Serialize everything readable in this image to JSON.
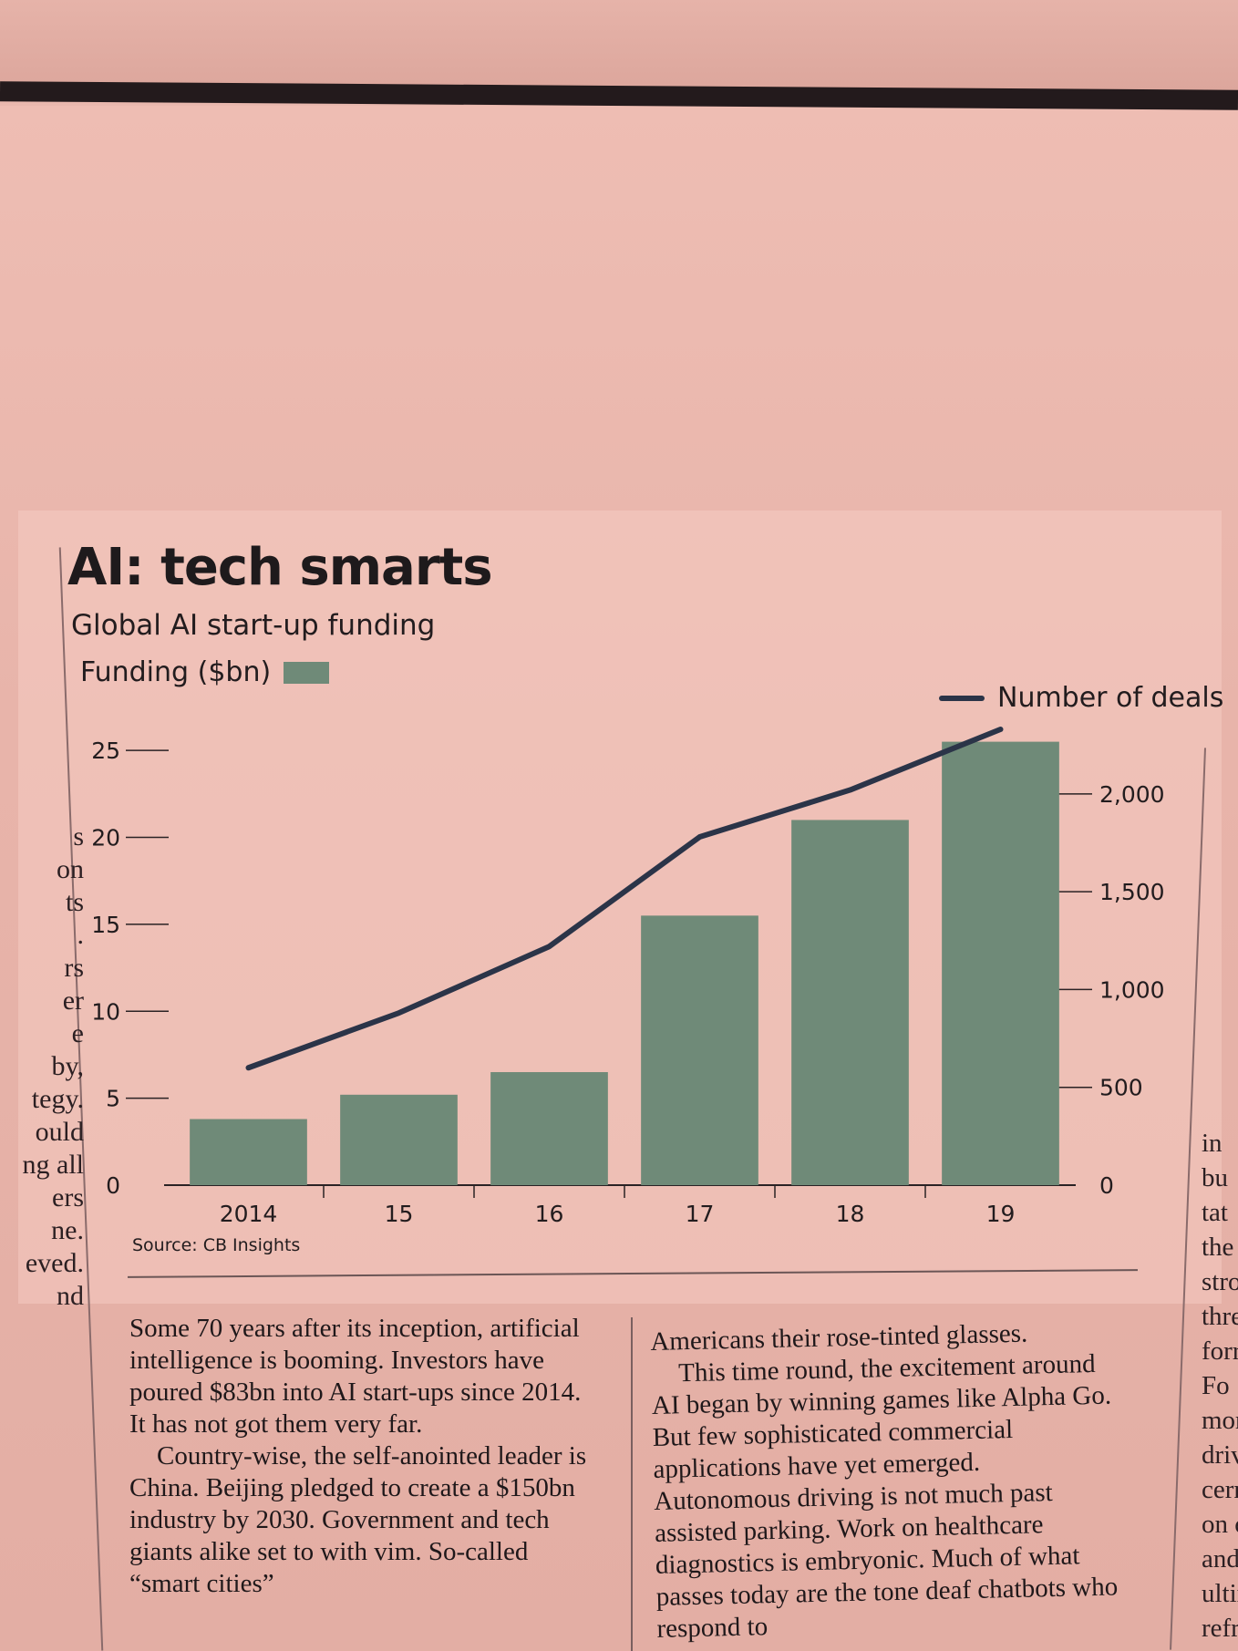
{
  "chart_data": {
    "type": "bar",
    "title": "AI: tech smarts",
    "subtitle": "Global AI start-up funding",
    "categories": [
      "2014",
      "15",
      "16",
      "17",
      "18",
      "19"
    ],
    "series": [
      {
        "name": "Funding ($bn)",
        "type": "bar",
        "axis": "left",
        "color": "#6f8a78",
        "values": [
          3.8,
          5.2,
          6.5,
          15.5,
          21,
          25.5
        ]
      },
      {
        "name": "Number of deals",
        "type": "line",
        "axis": "right",
        "color": "#2b3448",
        "values": [
          600,
          880,
          1220,
          1780,
          2020,
          2330
        ]
      }
    ],
    "y_left": {
      "ticks": [
        "0",
        "5",
        "10",
        "15",
        "20",
        "25"
      ],
      "range": [
        0,
        27
      ]
    },
    "y_right": {
      "ticks": [
        "0",
        "500",
        "1,000",
        "1,500",
        "2,000"
      ],
      "range": [
        0,
        2400
      ]
    },
    "grid": false,
    "legend": {
      "left": "Funding ($bn)",
      "right": "Number of deals"
    },
    "source": "Source: CB Insights"
  },
  "article": {
    "column_a": [
      "Some 70 years after its inception, artificial intelligence is booming. Investors have poured $83bn into AI start-ups since 2014. It has not got them very far.",
      "Country-wise, the self-anointed leader is China. Beijing pledged to create a $150bn industry by 2030. Government and tech giants alike set to with vim. So-called “smart cities”"
    ],
    "column_b": [
      "Americans their rose-tinted glasses.",
      "This time round, the excitement around AI began by winning games like Alpha Go. But few sophisticated commercial applications have yet emerged. Autonomous driving is not much past assisted parking. Work on healthcare diagnostics is embryonic. Much of what passes today are the tone deaf chatbots who respond to"
    ]
  },
  "edge_text": {
    "left": [
      "s",
      "on",
      "",
      "ts",
      ".",
      "rs",
      "",
      "",
      "er",
      "e",
      "by,",
      "",
      "",
      "tegy.",
      "ould",
      "ng all",
      "",
      "ers",
      "",
      "ne.",
      "eved.",
      "nd"
    ],
    "right": [
      "in",
      "bu",
      "tat",
      "",
      "the",
      "stro",
      "thre",
      "forr",
      "Fo",
      "mor",
      "drive",
      "cern",
      "on c",
      "and",
      "ultin",
      "refre"
    ]
  }
}
